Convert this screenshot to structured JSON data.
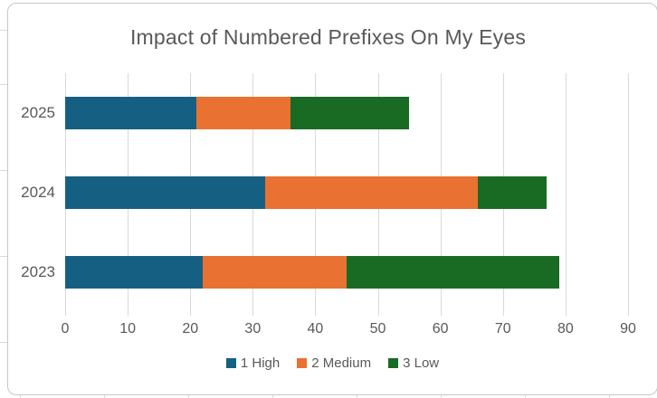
{
  "theme": {
    "text": "#595959",
    "gridline": "#D9D9D9",
    "frame_border": "#C8C8C8",
    "background": "#FFFFFF"
  },
  "chart_data": {
    "type": "bar",
    "orientation": "horizontal",
    "stacked": true,
    "title": "Impact of Numbered Prefixes On My Eyes",
    "categories": [
      "2025",
      "2024",
      "2023"
    ],
    "series": [
      {
        "name": "1 High",
        "color": "#156082",
        "values": [
          21,
          32,
          22
        ]
      },
      {
        "name": "2 Medium",
        "color": "#E97132",
        "values": [
          15,
          34,
          23
        ]
      },
      {
        "name": "3 Low",
        "color": "#196B24",
        "values": [
          19,
          11,
          34
        ]
      }
    ],
    "totals": [
      55,
      77,
      79
    ],
    "x_axis": {
      "min": 0,
      "max": 90,
      "ticks": [
        0,
        10,
        20,
        30,
        40,
        50,
        60,
        70,
        80,
        90
      ]
    },
    "y_axis_labels": [
      "2025",
      "2024",
      "2023"
    ],
    "legend_position": "bottom",
    "gridlines": true
  }
}
